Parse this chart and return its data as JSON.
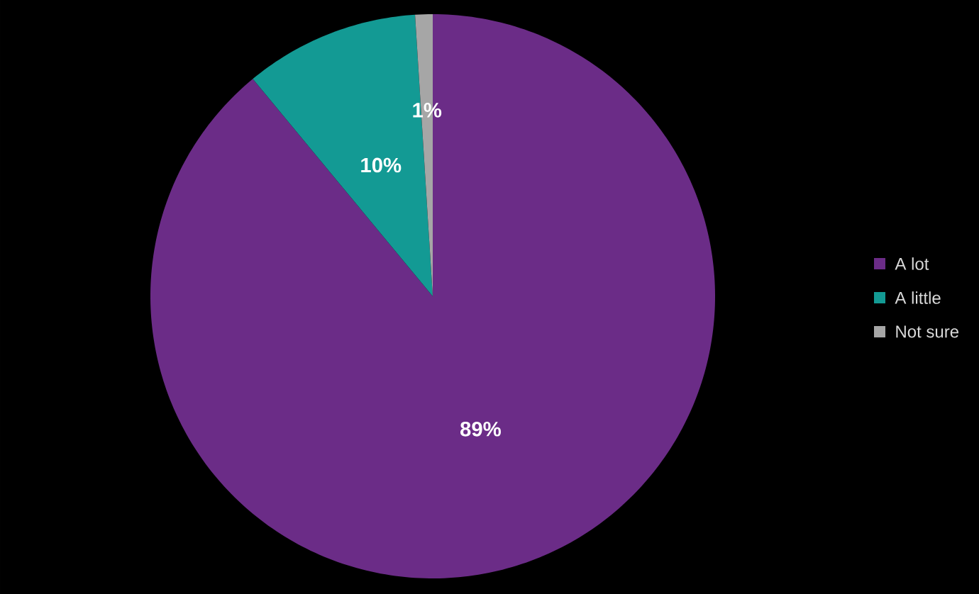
{
  "chart_data": {
    "type": "pie",
    "categories": [
      "A lot",
      "A little",
      "Not sure"
    ],
    "values": [
      89,
      10,
      1
    ],
    "colors": [
      "#6b2c87",
      "#139a94",
      "#a6a6a6"
    ],
    "value_labels": [
      "89%",
      "10%",
      "1%"
    ],
    "legend": "right"
  }
}
